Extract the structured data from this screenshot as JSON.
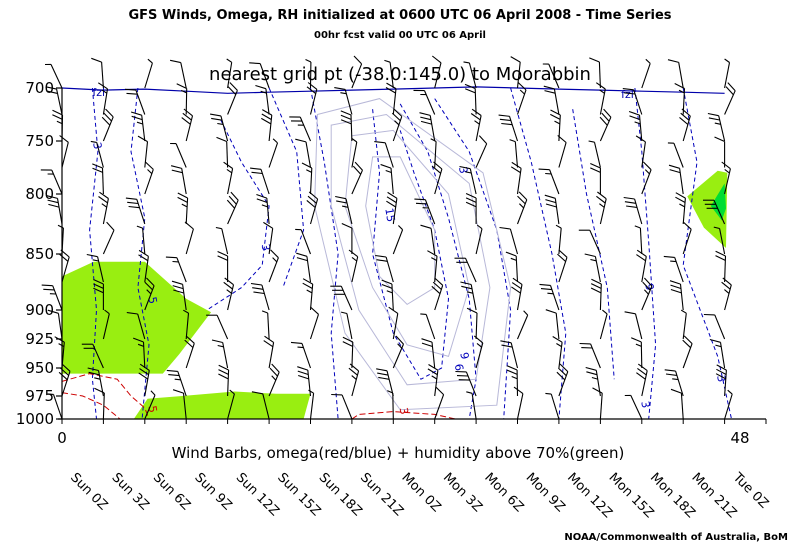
{
  "header": {
    "title": "GFS Winds, Omega, RH initialized at 0600 UTC  06 April 2008 - Time Series",
    "subtitle": "00hr fcst valid 00 UTC 06 April",
    "credit": "NOAA/Commonwealth of Australia, BoM"
  },
  "chart_data": {
    "type": "time-height cross section (wind barbs, contours, shading)",
    "title": "nearest grid pt (-38.0:145.0) to Moorabbin",
    "xlabel": "Wind Barbs, omega(red/blue) + humidity above 70%(green)",
    "x_axis": {
      "min_label": "0",
      "max_label": "48",
      "range_hours": [
        0,
        51
      ]
    },
    "y_axis": {
      "levels_hpa": [
        700,
        750,
        800,
        850,
        900,
        925,
        950,
        975,
        1000
      ],
      "inverted": true
    },
    "time_labels": [
      {
        "label": "Sun 0Z",
        "hour": 0
      },
      {
        "label": "Sun 3Z",
        "hour": 3
      },
      {
        "label": "Sun 6Z",
        "hour": 6
      },
      {
        "label": "Sun 9Z",
        "hour": 9
      },
      {
        "label": "Sun 12Z",
        "hour": 12
      },
      {
        "label": "Sun 15Z",
        "hour": 15
      },
      {
        "label": "Sun 18Z",
        "hour": 18
      },
      {
        "label": "Sun 21Z",
        "hour": 21
      },
      {
        "label": "Mon 0Z",
        "hour": 24
      },
      {
        "label": "Mon 3Z",
        "hour": 27
      },
      {
        "label": "Mon 6Z",
        "hour": 30
      },
      {
        "label": "Mon 9Z",
        "hour": 33
      },
      {
        "label": "Mon 12Z",
        "hour": 36
      },
      {
        "label": "Mon 15Z",
        "hour": 39
      },
      {
        "label": "Mon 18Z",
        "hour": 42
      },
      {
        "label": "Mon 21Z",
        "hour": 45
      },
      {
        "label": "Tue 0Z",
        "hour": 48
      }
    ],
    "freezing_level_label": "fzl",
    "freezing_level_hpa": [
      700,
      702,
      701,
      703,
      705,
      704,
      703,
      702,
      701,
      700,
      699,
      700,
      701,
      702,
      703,
      704,
      705
    ],
    "omega_contour_labels": [
      {
        "text": "3",
        "hour": 2.3,
        "hpa": 755,
        "color": "blue"
      },
      {
        "text": "3",
        "hour": 14.5,
        "hpa": 845,
        "color": "blue"
      },
      {
        "text": "15",
        "hour": 23.5,
        "hpa": 818,
        "color": "blue"
      },
      {
        "text": "3",
        "hour": 28.8,
        "hpa": 778,
        "color": "blue"
      },
      {
        "text": "6",
        "hour": 28.5,
        "hpa": 950,
        "color": "blue"
      },
      {
        "text": "9",
        "hour": 28.9,
        "hpa": 940,
        "color": "blue"
      },
      {
        "text": "9",
        "hour": 42.3,
        "hpa": 880,
        "color": "blue"
      },
      {
        "text": "3",
        "hour": 42.0,
        "hpa": 985,
        "color": "blue"
      },
      {
        "text": "3",
        "hour": 47.5,
        "hpa": 960,
        "color": "blue"
      },
      {
        "text": "5",
        "hour": 6.3,
        "hpa": 892,
        "color": "blue"
      },
      {
        "text": "5",
        "hour": 6.3,
        "hpa": 990,
        "color": "red"
      },
      {
        "text": "3",
        "hour": 24.5,
        "hpa": 992,
        "color": "red"
      }
    ],
    "humidity_above_70_regions": [
      {
        "name": "low-level moist area 1",
        "hours": [
          0,
          8.5
        ],
        "hpa_range": [
          862,
          955
        ]
      },
      {
        "name": "surface moist area",
        "hours": [
          5.2,
          18
        ],
        "hpa_range": [
          972,
          1000
        ]
      },
      {
        "name": "upper moist area",
        "hours": [
          45.2,
          48
        ],
        "hpa_range": [
          778,
          845
        ]
      }
    ],
    "colors": {
      "omega_rising": "#0000bb",
      "omega_sinking": "#cc0000",
      "humidity_fill": "#99ee11",
      "humidity_core": "#00dd33",
      "freezing_level": "#0000aa"
    },
    "grid": false
  }
}
